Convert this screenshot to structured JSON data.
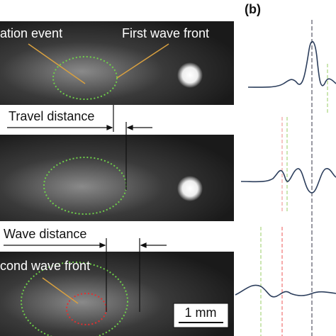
{
  "panels": [
    {
      "labels": [
        "ation event",
        "First wave front"
      ]
    },
    {
      "labels": [
        "Travel distance"
      ]
    },
    {
      "labels": [
        "Wave distance",
        "cond wave front"
      ]
    }
  ],
  "scale_bar": "1 mm",
  "panel_b_label": "(b)"
}
